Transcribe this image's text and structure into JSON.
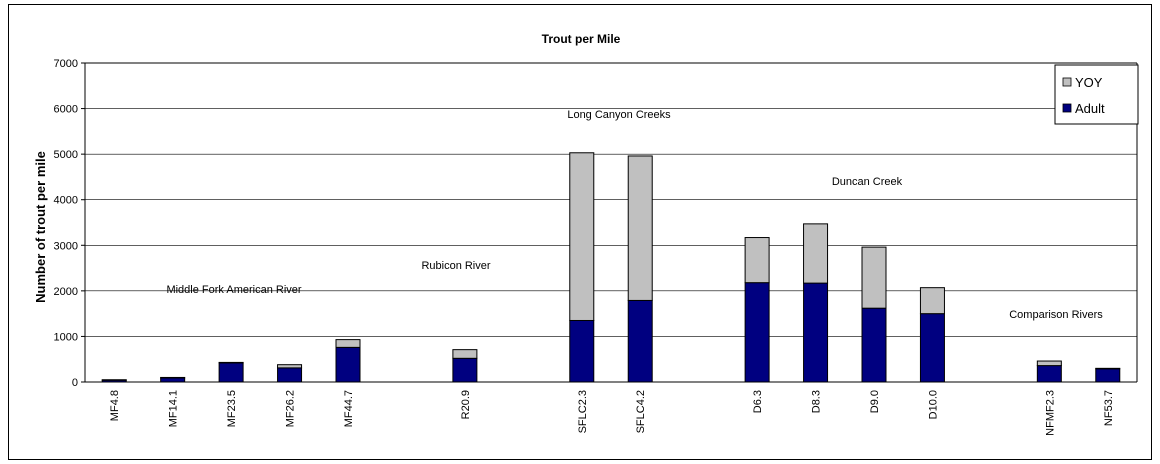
{
  "chart_data": {
    "type": "bar",
    "stacked": true,
    "title": "Trout per Mile",
    "xlabel": "",
    "ylabel": "Number of trout per mile",
    "ylim": [
      0,
      7000
    ],
    "yticks": [
      0,
      1000,
      2000,
      3000,
      4000,
      5000,
      6000,
      7000
    ],
    "grid": true,
    "legend_position": "top-right",
    "categories": [
      "MF4.8",
      "MF14.1",
      "MF23.5",
      "MF26.2",
      "MF44.7",
      "",
      "R20.9",
      "",
      "SFLC2.3",
      "SFLC4.2",
      "",
      "D6.3",
      "D8.3",
      "D9.0",
      "D10.0",
      "",
      "NFMF2.3",
      "NF53.7"
    ],
    "series": [
      {
        "name": "Adult",
        "color": "#000080",
        "values": [
          40,
          90,
          420,
          310,
          760,
          null,
          520,
          null,
          1350,
          1790,
          null,
          2180,
          2170,
          1620,
          1500,
          null,
          360,
          290
        ]
      },
      {
        "name": "YOY",
        "color": "#c0c0c0",
        "values": [
          10,
          10,
          10,
          70,
          170,
          null,
          190,
          null,
          3680,
          3170,
          null,
          990,
          1300,
          1340,
          570,
          null,
          100,
          10
        ]
      }
    ],
    "annotations": [
      {
        "text": "Middle Fork American River"
      },
      {
        "text": "Rubicon River"
      },
      {
        "text": "Long Canyon Creeks"
      },
      {
        "text": "Duncan Creek"
      },
      {
        "text": "Comparison Rivers"
      }
    ]
  }
}
